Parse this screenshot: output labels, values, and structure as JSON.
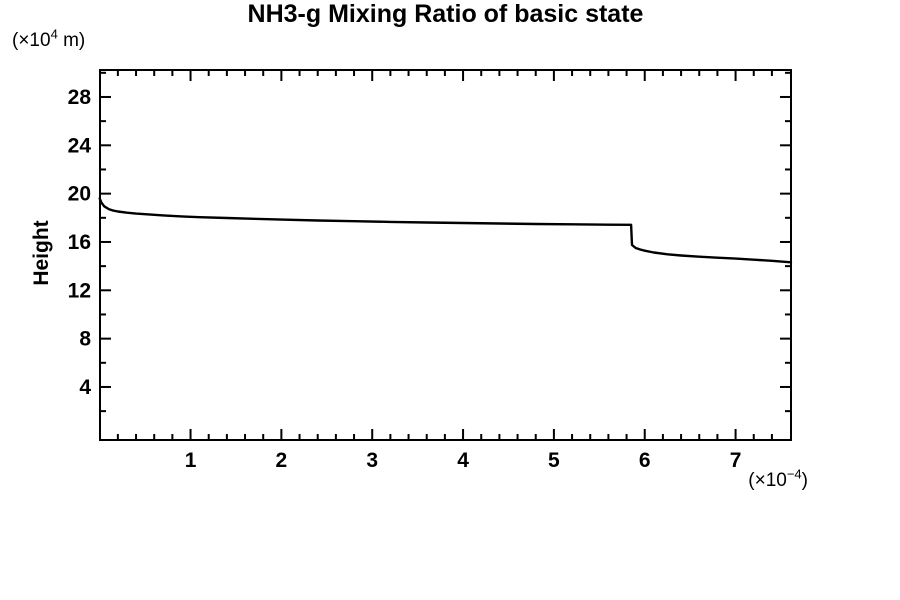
{
  "title": "NH3-g Mixing Ratio of basic state",
  "y_axis_title": "Height",
  "y_unit": {
    "prefix": "(×10",
    "exponent": "4",
    "suffix": " m)"
  },
  "x_unit": {
    "prefix": "(×10",
    "exponent": "−4",
    "suffix": ")"
  },
  "colors": {
    "line": "#000000",
    "background": "#ffffff",
    "axis": "#000000"
  },
  "chart_data": {
    "type": "line",
    "title": "NH3-g Mixing Ratio of basic state",
    "ylabel": "Height",
    "ylabel_unit": "(×10⁴ m)",
    "xlabel_unit": "(×10⁻⁴)",
    "xlim": [
      0,
      7.61
    ],
    "ylim": [
      -0.4,
      30.2
    ],
    "x_major_ticks": [
      1,
      2,
      3,
      4,
      5,
      6,
      7
    ],
    "x_minor_step": 0.2,
    "y_major_ticks": [
      4,
      8,
      12,
      16,
      20,
      24,
      28
    ],
    "y_minor_step": 2,
    "grid": false,
    "legend": "none",
    "series": [
      {
        "name": "NH3-g mixing ratio of basic state",
        "points": [
          [
            0.0,
            19.6
          ],
          [
            0.02,
            19.25
          ],
          [
            0.05,
            18.95
          ],
          [
            0.1,
            18.72
          ],
          [
            0.15,
            18.6
          ],
          [
            0.2,
            18.52
          ],
          [
            0.3,
            18.42
          ],
          [
            0.4,
            18.35
          ],
          [
            0.5,
            18.3
          ],
          [
            0.7,
            18.2
          ],
          [
            0.9,
            18.12
          ],
          [
            1.1,
            18.05
          ],
          [
            1.4,
            17.98
          ],
          [
            1.7,
            17.92
          ],
          [
            2.0,
            17.85
          ],
          [
            2.4,
            17.78
          ],
          [
            2.8,
            17.72
          ],
          [
            3.2,
            17.66
          ],
          [
            3.6,
            17.61
          ],
          [
            4.0,
            17.57
          ],
          [
            4.4,
            17.53
          ],
          [
            4.8,
            17.49
          ],
          [
            5.2,
            17.46
          ],
          [
            5.6,
            17.43
          ],
          [
            5.85,
            17.42
          ],
          [
            5.86,
            15.75
          ],
          [
            5.9,
            15.5
          ],
          [
            5.95,
            15.38
          ],
          [
            6.0,
            15.28
          ],
          [
            6.1,
            15.13
          ],
          [
            6.25,
            14.98
          ],
          [
            6.4,
            14.88
          ],
          [
            6.6,
            14.78
          ],
          [
            6.8,
            14.7
          ],
          [
            7.0,
            14.62
          ],
          [
            7.2,
            14.53
          ],
          [
            7.4,
            14.44
          ],
          [
            7.61,
            14.32
          ]
        ]
      }
    ]
  }
}
